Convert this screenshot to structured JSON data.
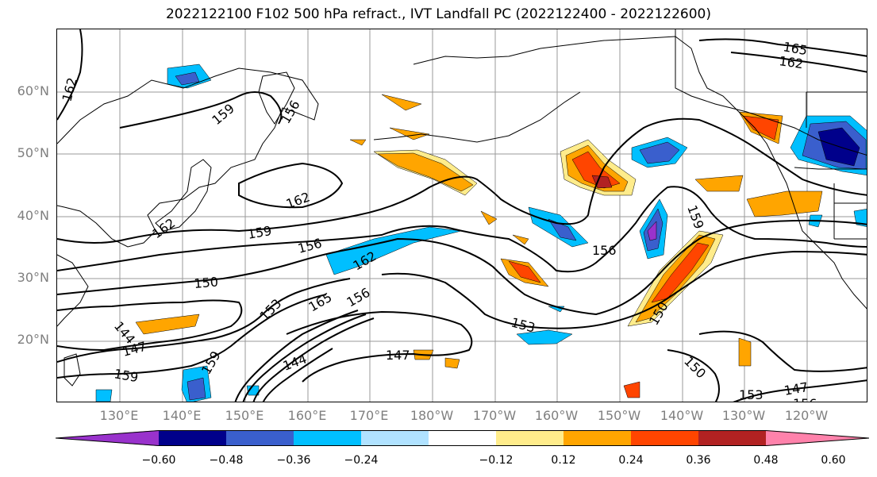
{
  "title": "2022122100 F102 500 hPa refract., IVT Landfall PC (2022122400 - 2022122600)",
  "lat_labels": [
    "60°N",
    "50°N",
    "40°N",
    "30°N",
    "20°N"
  ],
  "lon_labels": [
    "130°E",
    "140°E",
    "150°E",
    "160°E",
    "170°E",
    "180°W",
    "170°W",
    "160°W",
    "150°W",
    "140°W",
    "130°W",
    "120°W"
  ],
  "colorbar": {
    "ticks": [
      "−0.60",
      "−0.48",
      "−0.36",
      "−0.24",
      "−0.12",
      "0.12",
      "0.24",
      "0.36",
      "0.48",
      "0.60"
    ],
    "colors": [
      "#9932cc",
      "#00008b",
      "#3a5fcd",
      "#00bfff",
      "#b0e2ff",
      "#ffffff",
      "#ffec8b",
      "#ffa500",
      "#ff4500",
      "#b22222",
      "#ff82ab"
    ]
  },
  "contour_labels": [
    "165",
    "162",
    "162",
    "159",
    "156",
    "162",
    "159",
    "162",
    "156",
    "162",
    "150",
    "153",
    "165",
    "156",
    "144",
    "147",
    "159",
    "144",
    "147",
    "159",
    "156",
    "153",
    "159",
    "150",
    "150",
    "153",
    "147",
    "156"
  ]
}
